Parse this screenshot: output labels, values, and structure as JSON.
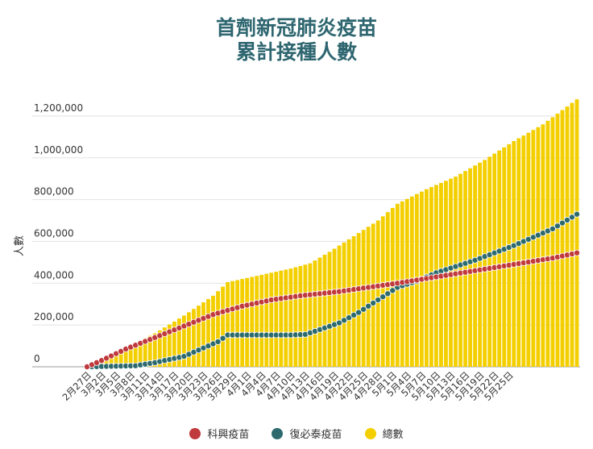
{
  "chart_data": {
    "type": "bar",
    "title_lines": [
      "首劑新冠肺炎疫苗",
      "累計接種人數"
    ],
    "ylabel": "人數",
    "ylim": [
      0,
      1300000
    ],
    "yticks": [
      "0",
      "200,000",
      "400,000",
      "600,000",
      "800,000",
      "1,000,000",
      "1,200,000"
    ],
    "ytick_values": [
      0,
      200000,
      400000,
      600000,
      800000,
      1000000,
      1200000
    ],
    "grid": true,
    "legend_position": "bottom",
    "date_start": "2月27日",
    "x_labels": [
      "2月27日",
      "3月2日",
      "3月5日",
      "3月8日",
      "3月11日",
      "3月14日",
      "3月17日",
      "3月20日",
      "3月23日",
      "3月26日",
      "3月29日",
      "4月1日",
      "4月4日",
      "4月7日",
      "4月10日",
      "4月13日",
      "4月16日",
      "4月19日",
      "4月22日",
      "4月25日",
      "4月28日",
      "5月1日",
      "5月4日",
      "5月7日",
      "5月10日",
      "5月13日",
      "5月16日",
      "5月19日",
      "5月22日",
      "5月25日"
    ],
    "series": [
      {
        "name": "科興疫苗",
        "type": "line",
        "color": "#c0393c"
      },
      {
        "name": "復必泰疫苗",
        "type": "line",
        "color": "#2c6a6e"
      },
      {
        "name": "總數",
        "type": "bar",
        "color": "#f4cf00"
      }
    ],
    "anchors": {
      "科興疫苗": [
        [
          0,
          0
        ],
        [
          3,
          30000
        ],
        [
          8,
          85000
        ],
        [
          14,
          140000
        ],
        [
          20,
          195000
        ],
        [
          26,
          250000
        ],
        [
          32,
          290000
        ],
        [
          38,
          320000
        ],
        [
          44,
          340000
        ],
        [
          52,
          360000
        ],
        [
          58,
          380000
        ],
        [
          64,
          400000
        ],
        [
          72,
          430000
        ],
        [
          80,
          460000
        ],
        [
          88,
          490000
        ],
        [
          96,
          520000
        ],
        [
          101,
          545000
        ]
      ],
      "復必泰疫苗": [
        [
          0,
          0
        ],
        [
          10,
          5000
        ],
        [
          14,
          20000
        ],
        [
          20,
          50000
        ],
        [
          24,
          90000
        ],
        [
          27,
          120000
        ],
        [
          29,
          152000
        ],
        [
          36,
          152000
        ],
        [
          42,
          152000
        ],
        [
          45,
          155000
        ],
        [
          47,
          170000
        ],
        [
          52,
          210000
        ],
        [
          56,
          260000
        ],
        [
          60,
          320000
        ],
        [
          64,
          380000
        ],
        [
          68,
          410000
        ],
        [
          72,
          450000
        ],
        [
          80,
          510000
        ],
        [
          88,
          580000
        ],
        [
          96,
          660000
        ],
        [
          101,
          730000
        ]
      ],
      "總數": [
        [
          0,
          0
        ],
        [
          4,
          30000
        ],
        [
          8,
          90000
        ],
        [
          14,
          160000
        ],
        [
          20,
          245000
        ],
        [
          26,
          340000
        ],
        [
          29,
          405000
        ],
        [
          36,
          440000
        ],
        [
          42,
          470000
        ],
        [
          46,
          495000
        ],
        [
          50,
          550000
        ],
        [
          56,
          640000
        ],
        [
          60,
          700000
        ],
        [
          64,
          780000
        ],
        [
          70,
          850000
        ],
        [
          76,
          910000
        ],
        [
          82,
          990000
        ],
        [
          88,
          1080000
        ],
        [
          94,
          1160000
        ],
        [
          101,
          1280000
        ]
      ]
    }
  }
}
